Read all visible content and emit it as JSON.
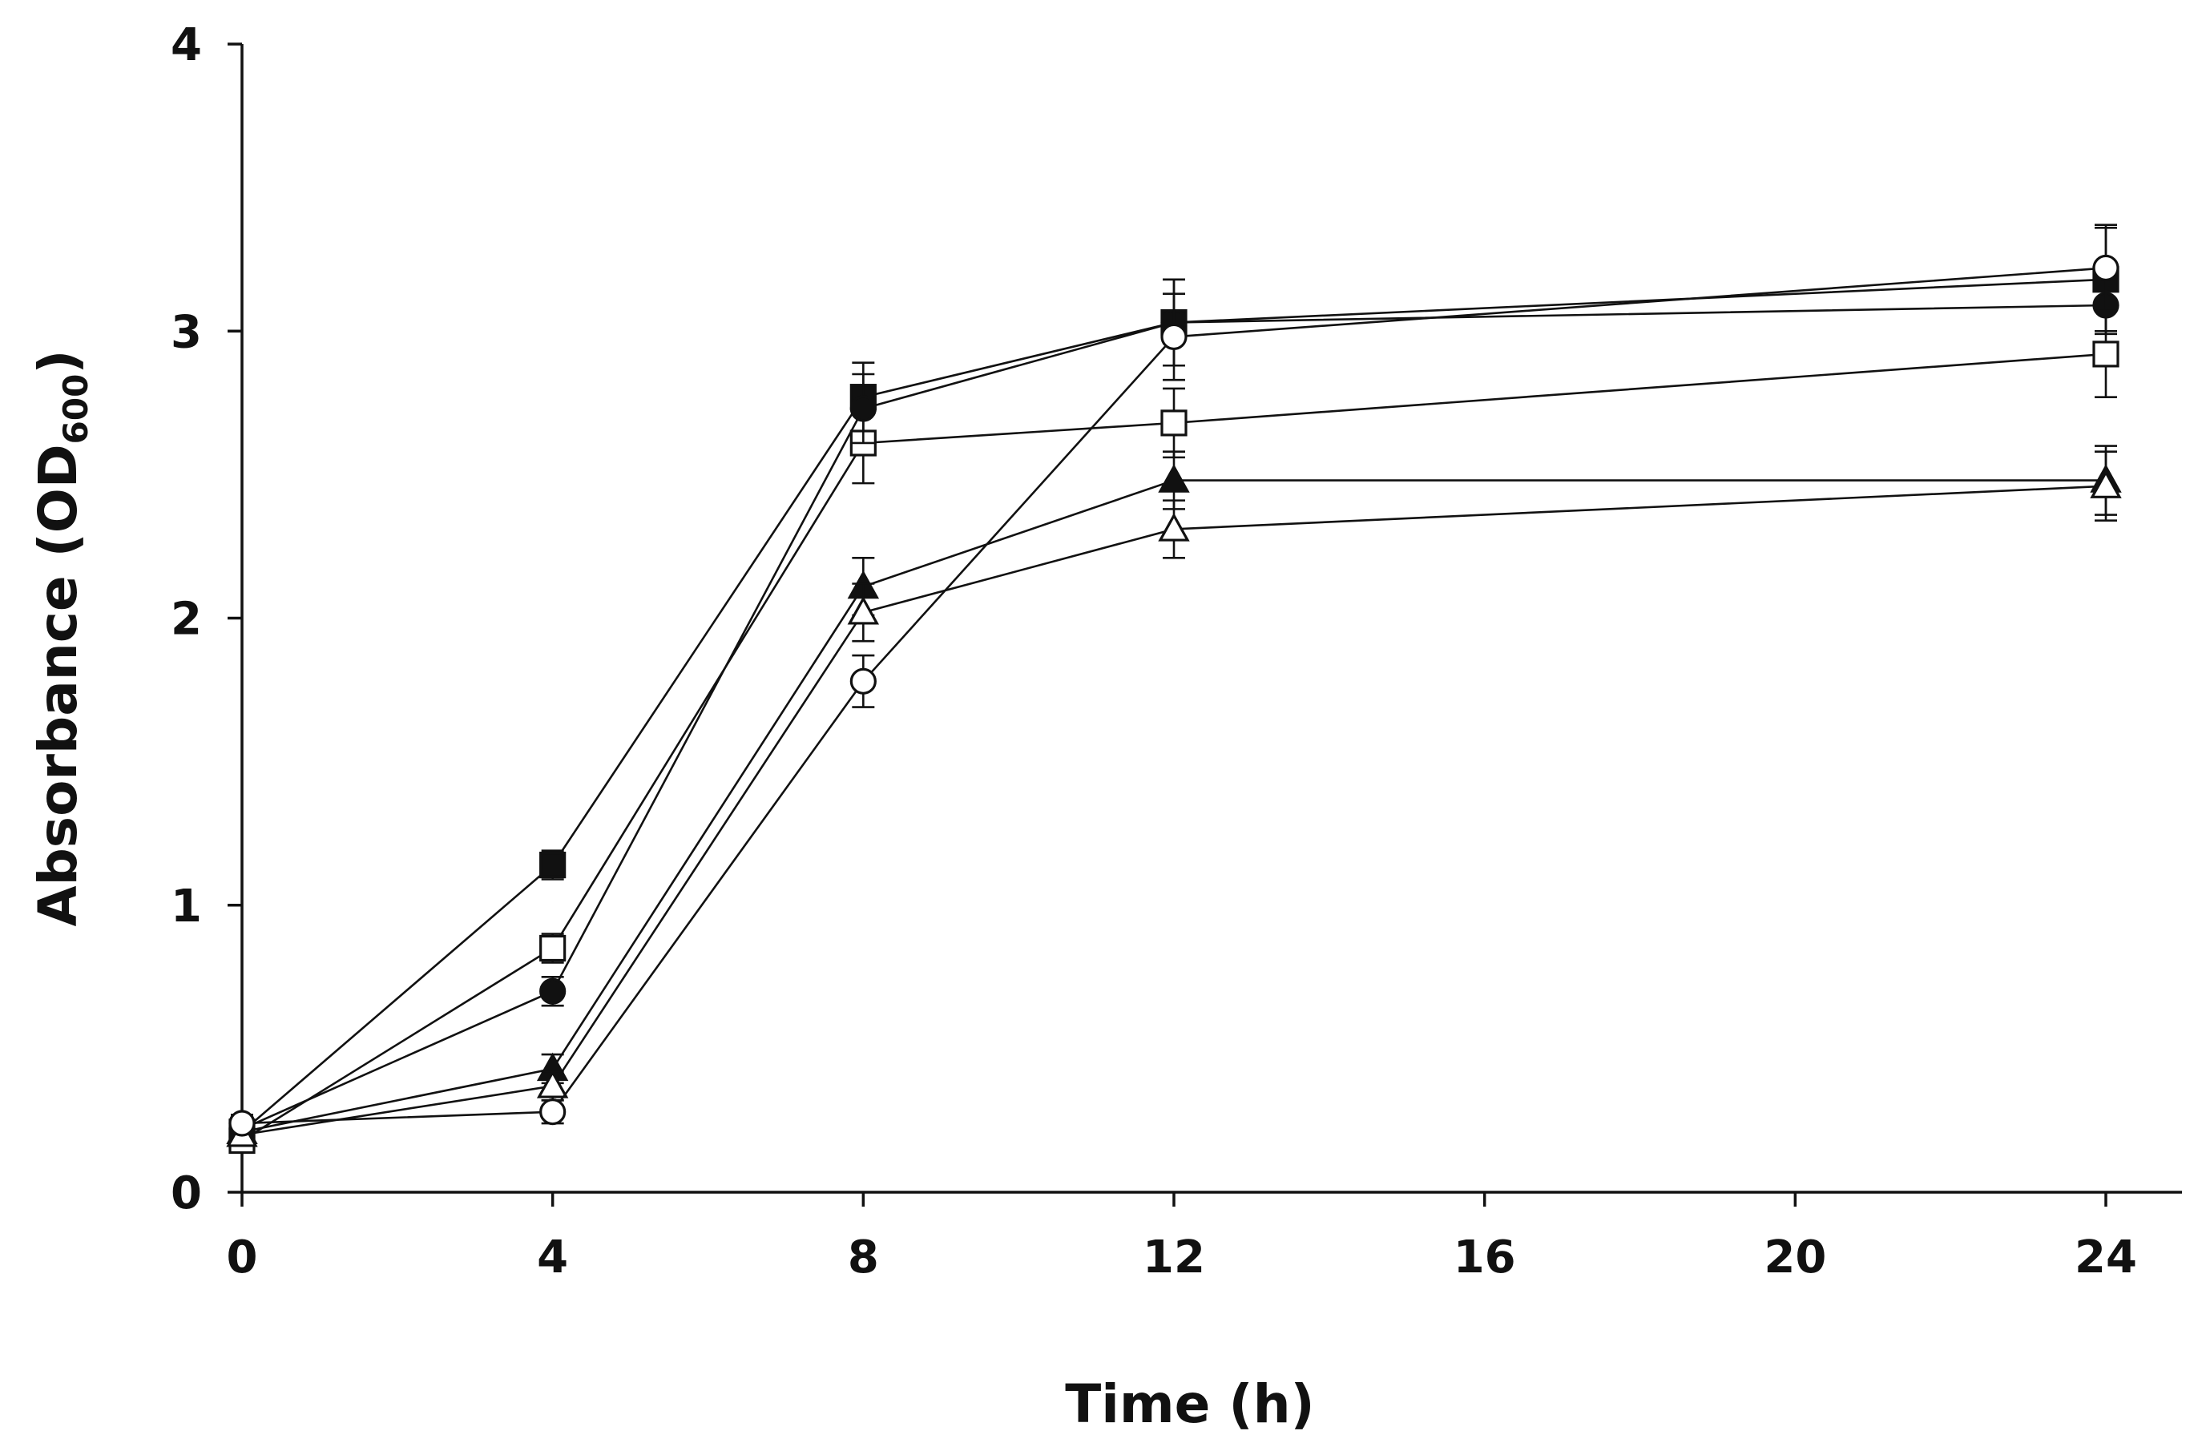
{
  "chart_data": {
    "type": "line",
    "title": "",
    "xlabel": "Time (h)",
    "ylabel_main": "Absorbance (OD",
    "ylabel_sub": "600",
    "ylabel_close": ")",
    "xlim": [
      0,
      25
    ],
    "ylim": [
      0,
      4
    ],
    "xticks": [
      0,
      4,
      8,
      12,
      16,
      20,
      24
    ],
    "yticks": [
      0,
      1,
      2,
      3,
      4
    ],
    "grid": false,
    "legend": "none",
    "x": [
      0,
      4,
      8,
      12,
      24
    ],
    "series": [
      {
        "name": "filled-square",
        "marker": "square",
        "filled": true,
        "values": [
          0.21,
          1.14,
          2.77,
          3.03,
          3.18
        ],
        "errors": [
          0.03,
          0.05,
          0.12,
          0.15,
          0.18
        ]
      },
      {
        "name": "open-square",
        "marker": "square",
        "filled": false,
        "values": [
          0.18,
          0.85,
          2.61,
          2.68,
          2.92
        ],
        "errors": [
          0.03,
          0.05,
          0.14,
          0.12,
          0.15
        ]
      },
      {
        "name": "filled-circle",
        "marker": "circle",
        "filled": true,
        "values": [
          0.22,
          0.7,
          2.73,
          3.03,
          3.09
        ],
        "errors": [
          0.03,
          0.05,
          0.12,
          0.15,
          0.1
        ]
      },
      {
        "name": "filled-triangle",
        "marker": "triangle",
        "filled": true,
        "values": [
          0.21,
          0.43,
          2.11,
          2.48,
          2.48
        ],
        "errors": [
          0.03,
          0.05,
          0.1,
          0.1,
          0.12
        ]
      },
      {
        "name": "open-triangle",
        "marker": "triangle",
        "filled": false,
        "values": [
          0.2,
          0.37,
          2.02,
          2.31,
          2.46
        ],
        "errors": [
          0.03,
          0.05,
          0.1,
          0.1,
          0.12
        ]
      },
      {
        "name": "open-circle",
        "marker": "circle",
        "filled": false,
        "values": [
          0.24,
          0.28,
          1.78,
          2.98,
          3.22
        ],
        "errors": [
          0.03,
          0.04,
          0.09,
          0.15,
          0.15
        ]
      }
    ]
  }
}
